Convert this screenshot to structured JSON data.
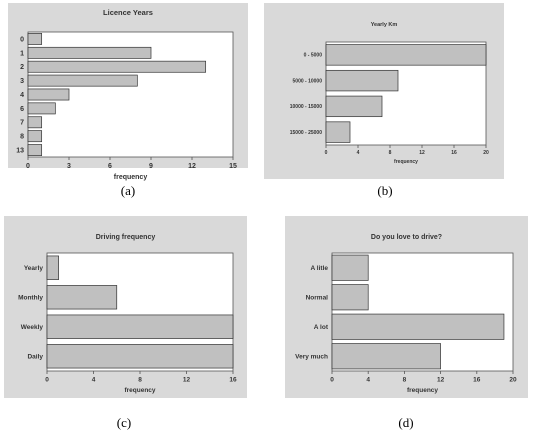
{
  "captions": [
    "(a)",
    "(b)",
    "(c)",
    "(d)"
  ],
  "chart_data": [
    {
      "type": "bar",
      "orientation": "horizontal",
      "title": "Licence Years",
      "xlabel": "frequency",
      "ylabel": "",
      "categories": [
        "0",
        "1",
        "2",
        "3",
        "4",
        "6",
        "7",
        "8",
        "13"
      ],
      "values": [
        1,
        9,
        13,
        8,
        3,
        2,
        1,
        1,
        1
      ],
      "xlim": [
        0,
        15
      ],
      "xticks": [
        "0",
        "3",
        "6",
        "9",
        "12",
        "15"
      ],
      "grid": false,
      "bar_color": "#c0c0c0"
    },
    {
      "type": "bar",
      "orientation": "horizontal",
      "title": "Yearly Km",
      "xlabel": "frequency",
      "ylabel": "",
      "categories": [
        "0 - 5000",
        "5000 - 10000",
        "10000 - 15000",
        "15000 - 25000"
      ],
      "values": [
        20,
        9,
        7,
        3
      ],
      "xlim": [
        0,
        20
      ],
      "xticks": [
        "0",
        "4",
        "8",
        "12",
        "16",
        "20"
      ],
      "grid": false,
      "bar_color": "#c0c0c0"
    },
    {
      "type": "bar",
      "orientation": "horizontal",
      "title": "Driving frequency",
      "xlabel": "frequency",
      "ylabel": "",
      "categories": [
        "Yearly",
        "Monthly",
        "Weekly",
        "Daily"
      ],
      "values": [
        1,
        6,
        16,
        16
      ],
      "xlim": [
        0,
        16
      ],
      "xticks": [
        "0",
        "4",
        "8",
        "12",
        "16"
      ],
      "grid": false,
      "bar_color": "#c0c0c0"
    },
    {
      "type": "bar",
      "orientation": "horizontal",
      "title": "Do you love to drive?",
      "xlabel": "frequency",
      "ylabel": "",
      "categories": [
        "A litle",
        "Normal",
        "A lot",
        "Very much"
      ],
      "values": [
        4,
        4,
        19,
        12
      ],
      "xlim": [
        0,
        20
      ],
      "xticks": [
        "0",
        "4",
        "8",
        "12",
        "16",
        "20"
      ],
      "grid": false,
      "bar_color": "#c0c0c0"
    }
  ]
}
